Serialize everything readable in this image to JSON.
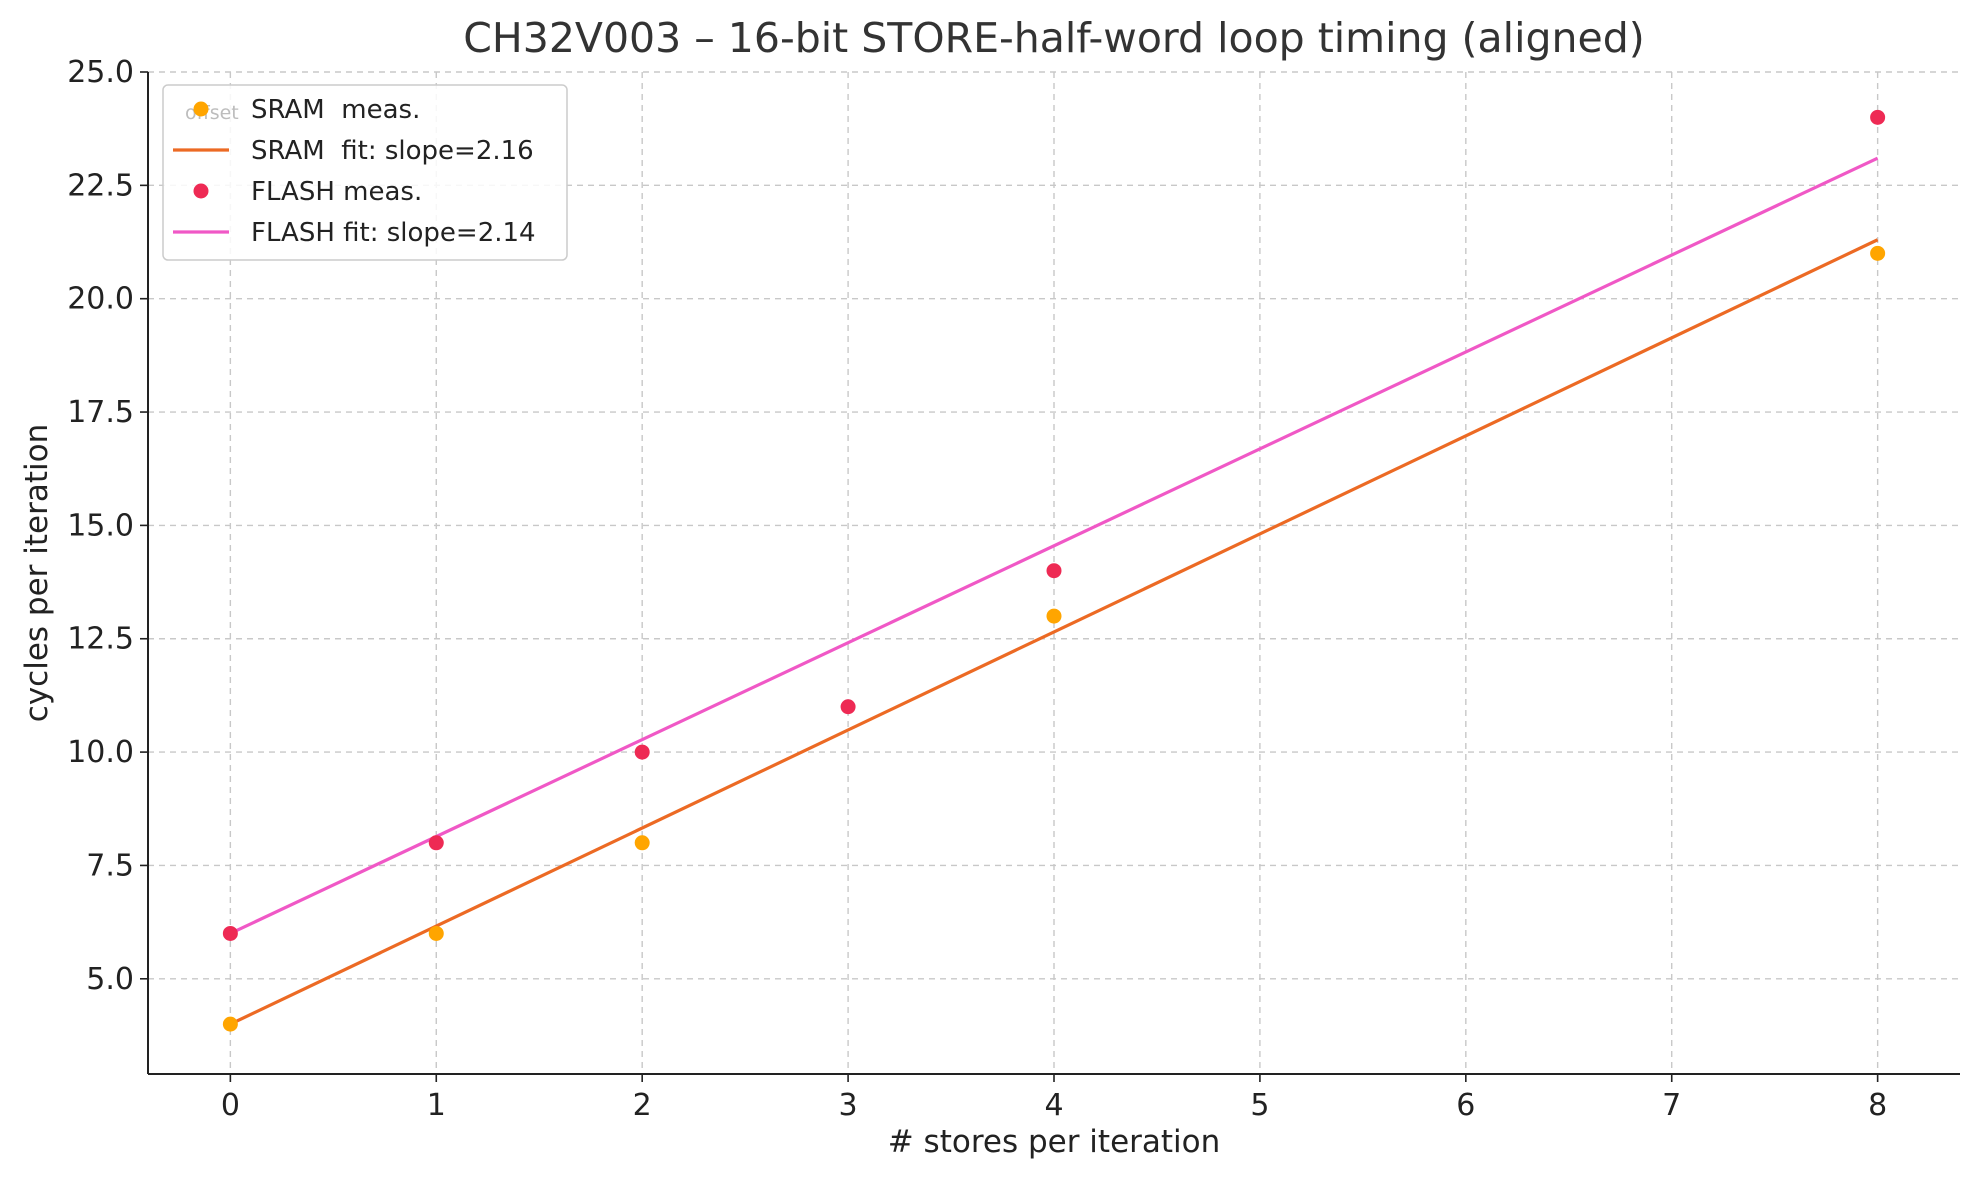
{
  "chart_data": {
    "type": "scatter",
    "title": "CH32V003 – 16-bit STORE-half-word loop timing (aligned)",
    "xlabel": "# stores per iteration",
    "ylabel": "cycles per iteration",
    "xlim": [
      -0.4,
      8.4
    ],
    "ylim": [
      2.9,
      25.0
    ],
    "xticks": [
      0,
      1,
      2,
      3,
      4,
      5,
      6,
      7,
      8
    ],
    "xtick_labels": [
      "0",
      "1",
      "2",
      "3",
      "4",
      "5",
      "6",
      "7",
      "8"
    ],
    "yticks": [
      5.0,
      7.5,
      10.0,
      12.5,
      15.0,
      17.5,
      20.0,
      22.5,
      25.0
    ],
    "ytick_labels": [
      "5.0",
      "7.5",
      "10.0",
      "12.5",
      "15.0",
      "17.5",
      "20.0",
      "22.5",
      "25.0"
    ],
    "grid": true,
    "legend_position": "top-left",
    "legend_faded_text": "offset",
    "series": [
      {
        "name": "SRAM  meas.",
        "kind": "scatter",
        "color": "#ffa500",
        "x": [
          0,
          1,
          2,
          4,
          8
        ],
        "y": [
          4,
          6,
          8,
          13,
          21
        ]
      },
      {
        "name": "SRAM  fit: slope=2.16",
        "kind": "line",
        "color": "#ec6a24",
        "x": [
          0,
          8
        ],
        "y": [
          4.0,
          21.3
        ]
      },
      {
        "name": "FLASH meas.",
        "kind": "scatter",
        "color": "#ee2a54",
        "x": [
          0,
          1,
          2,
          3,
          4,
          8
        ],
        "y": [
          6,
          8,
          10,
          11,
          14,
          24
        ]
      },
      {
        "name": "FLASH fit: slope=2.14",
        "kind": "line",
        "color": "#f058c6",
        "x": [
          0,
          8
        ],
        "y": [
          6.0,
          23.1
        ]
      }
    ]
  }
}
